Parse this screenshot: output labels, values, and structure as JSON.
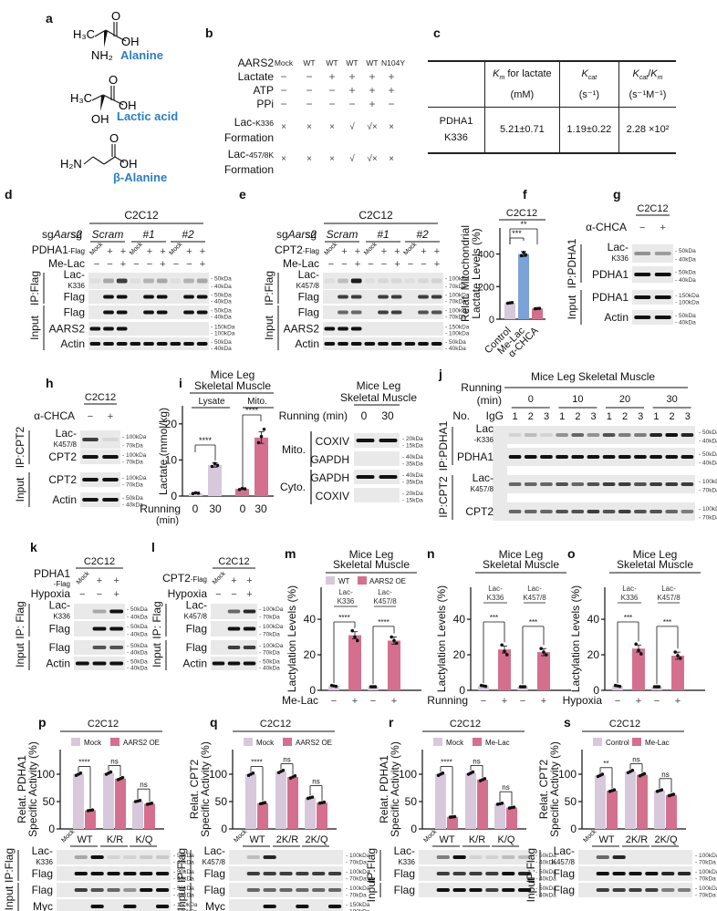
{
  "figure": {
    "panels": [
      "a",
      "b",
      "c",
      "d",
      "e",
      "f",
      "g",
      "h",
      "i",
      "j",
      "k",
      "l",
      "m",
      "n",
      "o",
      "p",
      "q",
      "r",
      "s"
    ]
  },
  "panel_a": {
    "label": "a",
    "molecules": [
      {
        "name": "Alanine",
        "left": "H₃C",
        "substituent": "NH₂",
        "acid": "OH",
        "oxo": "O"
      },
      {
        "name": "Lactic acid",
        "left": "H₃C",
        "substituent": "OH",
        "acid": "OH",
        "oxo": "O"
      },
      {
        "name": "β-Alanine",
        "left": "H₂N",
        "substituent": "",
        "acid": "OH",
        "oxo": "O"
      }
    ]
  },
  "panel_b": {
    "label": "b",
    "columns": [
      "Mock",
      "WT",
      "WT",
      "WT",
      "WT",
      "N104Y"
    ],
    "rows": [
      {
        "label": "AARS2",
        "values": [
          "Mock",
          "WT",
          "WT",
          "WT",
          "WT",
          "N104Y"
        ]
      },
      {
        "label": "Lactate",
        "values": [
          "−",
          "−",
          "+",
          "+",
          "+",
          "+"
        ]
      },
      {
        "label": "ATP",
        "values": [
          "−",
          "−",
          "−",
          "+",
          "+",
          "+"
        ]
      },
      {
        "label": "PPi",
        "values": [
          "−",
          "−",
          "−",
          "−",
          "+",
          "−"
        ]
      },
      {
        "label": "Lac-K336 Formation",
        "label_main": "Lac-",
        "label_sub": "K336",
        "label2": "Formation",
        "values": [
          "×",
          "×",
          "×",
          "√",
          "√×",
          "×"
        ]
      },
      {
        "label": "Lac-457/8K Formation",
        "label_main": "Lac-",
        "label_sub": "457/8K",
        "label2": "Formation",
        "values": [
          "×",
          "×",
          "×",
          "√",
          "√×",
          "×"
        ]
      }
    ]
  },
  "panel_c": {
    "label": "c",
    "headers": [
      {
        "line1": "K_m for lactate",
        "line2": "(mM)"
      },
      {
        "line1": "K_cat",
        "line2": "(s⁻¹)"
      },
      {
        "line1": "K_cat/K_m",
        "line2": "(s⁻¹M⁻¹)"
      }
    ],
    "row_label": [
      "PDHA1",
      "K336"
    ],
    "values": [
      "5.21±0.71",
      "1.19±0.22",
      "2.28 ×10²"
    ]
  },
  "panel_d": {
    "label": "d",
    "cell": "C2C12",
    "sg_label": "sgAars2",
    "groups": [
      "Scram",
      "#1",
      "#2"
    ],
    "row1_label": "PDHA1-Flag",
    "row1": [
      "Mock",
      "+",
      "+",
      "Mock",
      "+",
      "+",
      "Mock",
      "+",
      "+"
    ],
    "row2_label": "Me-Lac",
    "row2": [
      "−",
      "−",
      "+",
      "−",
      "−",
      "+",
      "−",
      "−",
      "+"
    ],
    "sections": [
      {
        "name": "IP:Flag",
        "blots": [
          "Lac-K336",
          "Flag"
        ]
      },
      {
        "name": "Input",
        "blots": [
          "Flag",
          "AARS2",
          "Actin"
        ]
      }
    ],
    "markers": [
      [
        "50kDa",
        "40kDa"
      ],
      [
        "50kDa",
        "40kDa"
      ],
      [
        "50kDa",
        "40kDa"
      ],
      [
        "150kDa",
        "100kDa"
      ],
      [
        "50kDa",
        "40kDa"
      ]
    ]
  },
  "panel_e": {
    "label": "e",
    "cell": "C2C12",
    "sg_label": "sgAars2",
    "groups": [
      "Scram",
      "#1",
      "#2"
    ],
    "row1_label": "CPT2-Flag",
    "row1": [
      "Mock",
      "+",
      "+",
      "Mock",
      "+",
      "+",
      "Mock",
      "+",
      "+"
    ],
    "row2_label": "Me-Lac",
    "row2": [
      "−",
      "−",
      "+",
      "−",
      "−",
      "+",
      "−",
      "−",
      "+"
    ],
    "sections": [
      {
        "name": "IP:Flag",
        "blots": [
          "Lac-K457/8",
          "Flag"
        ]
      },
      {
        "name": "Input",
        "blots": [
          "Flag",
          "AARS2",
          "Actin"
        ]
      }
    ],
    "markers": [
      [
        "100kDa",
        "70kDa"
      ],
      [
        "100kDa",
        "70kDa"
      ],
      [
        "100kDa",
        "70kDa"
      ],
      [
        "150kDa",
        "100kDa"
      ],
      [
        "50kDa",
        "40kDa"
      ]
    ]
  },
  "panel_f": {
    "label": "f",
    "cell": "C2C12",
    "ylabel": "Relat. Mitochondrial Lactate Levels (%)",
    "yticks": [
      "0",
      "200",
      "400"
    ],
    "categories": [
      "Control",
      "Me-Lac",
      "α-CHCA"
    ],
    "sig": [
      "***",
      "**"
    ]
  },
  "panel_g": {
    "label": "g",
    "cell": "C2C12",
    "treatment": "α-CHCA",
    "lanes": [
      "−",
      "+"
    ],
    "sections": [
      {
        "name": "IP:PDHA1",
        "blots": [
          "Lac-K336",
          "PDHA1"
        ]
      },
      {
        "name": "Input",
        "blots": [
          "PDHA1",
          "Actin"
        ]
      }
    ],
    "markers": [
      [
        "50kDa",
        "40kDa"
      ],
      [
        "50kDa",
        "40kDa"
      ],
      [
        "150kDa",
        "100kDa"
      ],
      [
        "50kDa",
        "40kDa"
      ]
    ]
  },
  "panel_h": {
    "label": "h",
    "cell": "C2C12",
    "treatment": "α-CHCA",
    "lanes": [
      "−",
      "+"
    ],
    "sections": [
      {
        "name": "IP:CPT2",
        "blots": [
          "Lac-K457/8",
          "CPT2"
        ]
      },
      {
        "name": "Input",
        "blots": [
          "CPT2",
          "Actin"
        ]
      }
    ],
    "markers": [
      [
        "100kDa",
        "70kDa"
      ],
      [
        "100kDa",
        "70kDa"
      ],
      [
        "100kDa",
        "70kDa"
      ],
      [
        "50kDa",
        "40kDa"
      ]
    ]
  },
  "panel_i": {
    "label": "i",
    "title": "Mice Leg Skeletal Muscle",
    "title1": "Mice Leg",
    "title2": "Skeletal Muscle",
    "groups": [
      "Lysate",
      "Mito."
    ],
    "ylabel": "Lactate (mmol/kg)",
    "yticks": [
      "0",
      "10",
      "20"
    ],
    "xlabel1": "Running",
    "xlabel2": "(min)",
    "xticks": [
      "0",
      "30",
      "0",
      "30"
    ],
    "sig": [
      "****",
      "****"
    ],
    "blot_title1": "Mice Leg",
    "blot_title2": "Skeletal Muscle",
    "blot_running_label": "Running (min)",
    "blot_lanes": [
      "0",
      "30"
    ],
    "blot_sections": [
      {
        "name": "Mito.",
        "blots": [
          "COXIV",
          "GAPDH"
        ]
      },
      {
        "name": "Cyto.",
        "blots": [
          "GAPDH",
          "COXIV"
        ]
      }
    ],
    "blot_markers": [
      [
        "20kDa",
        "15kDa"
      ],
      [
        "40kDa",
        "35kDa"
      ],
      [
        "40kDa",
        "35kDa"
      ],
      [
        "20kDa",
        "15kDa"
      ]
    ]
  },
  "panel_j": {
    "label": "j",
    "title": "Mice Leg Skeletal Muscle",
    "running_label1": "Running",
    "running_label2": "(min)",
    "timepoints": [
      "0",
      "10",
      "20",
      "30"
    ],
    "no_label": "No.",
    "igg_label": "IgG",
    "replicates": [
      "1",
      "2",
      "3"
    ],
    "sections": [
      {
        "name": "IP:PDHA1",
        "blots": [
          "Lac-K336",
          "PDHA1"
        ]
      },
      {
        "name": "IP:CPT2",
        "blots": [
          "Lac-K457/8",
          "CPT2"
        ]
      }
    ],
    "markers": [
      [
        "50kDa",
        "40kDa"
      ],
      [
        "50kDa",
        "40kDa"
      ],
      [
        "100kDa",
        "70kDa"
      ],
      [
        "100kDa",
        "70kDa"
      ]
    ]
  },
  "panel_k": {
    "label": "k",
    "cell": "C2C12",
    "row1_label": "PDHA1-Flag",
    "row1": [
      "Mock",
      "+",
      "+"
    ],
    "row2_label": "Hypoxia",
    "row2": [
      "−",
      "−",
      "+"
    ],
    "sections": [
      {
        "name": "IP: Flag",
        "blots": [
          "Lac-K336",
          "Flag"
        ]
      },
      {
        "name": "Input",
        "blots": [
          "Flag",
          "Actin"
        ]
      }
    ],
    "markers": [
      [
        "50kDa",
        "40kDa"
      ],
      [
        "50kDa",
        "40kDa"
      ],
      [
        "50kDa",
        "40kDa"
      ],
      [
        "50kDa",
        "40kDa"
      ]
    ]
  },
  "panel_l": {
    "label": "l",
    "cell": "C2C12",
    "row1_label": "CPT2-Flag",
    "row1": [
      "Mock",
      "+",
      "+"
    ],
    "row2_label": "Hypoxia",
    "row2": [
      "−",
      "−",
      "+"
    ],
    "sections": [
      {
        "name": "IP: Flag",
        "blots": [
          "Lac-K457/8",
          "Flag"
        ]
      },
      {
        "name": "Input",
        "blots": [
          "Flag",
          "Actin"
        ]
      }
    ],
    "markers": [
      [
        "100kDa",
        "70kDa"
      ],
      [
        "100kDa",
        "70kDa"
      ],
      [
        "100kDa",
        "70kDa"
      ],
      [
        "50kDa",
        "40kDa"
      ]
    ]
  },
  "panel_m": {
    "label": "m",
    "title1": "Mice Leg",
    "title2": "Skeletal Muscle",
    "legend": [
      "WT",
      "AARS2 OE"
    ],
    "sites": [
      "Lac-K336",
      "Lac-K457/8"
    ],
    "ylabel": "Lactylation Levels (%)",
    "yticks": [
      "0",
      "20",
      "40"
    ],
    "xlabel": "Me-Lac",
    "xticks": [
      "−",
      "+",
      "−",
      "+"
    ],
    "sig": [
      "****",
      "****"
    ]
  },
  "panel_n": {
    "label": "n",
    "title1": "Mice Leg",
    "title2": "Skeletal Muscle",
    "sites": [
      "Lac-K336",
      "Lac-K457/8"
    ],
    "ylabel": "Lactylation Levels (%)",
    "yticks": [
      "0",
      "20",
      "40"
    ],
    "xlabel": "Running",
    "xticks": [
      "−",
      "+",
      "−",
      "+"
    ],
    "sig": [
      "***",
      "***"
    ]
  },
  "panel_o": {
    "label": "o",
    "title1": "Mice Leg",
    "title2": "Skeletal Muscle",
    "sites": [
      "Lac-K336",
      "Lac-K457/8"
    ],
    "ylabel": "Lactylation Levels (%)",
    "yticks": [
      "0",
      "20",
      "40"
    ],
    "xlabel": "Hypoxia",
    "xticks": [
      "−",
      "+",
      "−",
      "+"
    ],
    "sig": [
      "***",
      "***"
    ]
  },
  "panel_p": {
    "label": "p",
    "cell": "C2C12",
    "legend": [
      "Mock",
      "AARS2 OE"
    ],
    "ylabel1": "Relat. PDHA1",
    "ylabel2": "Specific Activity (%)",
    "yticks": [
      "0",
      "50",
      "100"
    ],
    "groups": [
      "Mock",
      "WT",
      "K/R",
      "K/Q"
    ],
    "sig": [
      "****",
      "ns",
      "ns"
    ],
    "sections": [
      {
        "name": "IP:Flag",
        "blots": [
          "Lac-K336",
          "Flag"
        ]
      },
      {
        "name": "Input",
        "blots": [
          "Flag",
          "Myc"
        ]
      }
    ],
    "markers": [
      [
        "50kDa",
        "40kDa"
      ],
      [
        "50kDa",
        "40kDa"
      ],
      [
        "50kDa",
        "40kDa"
      ],
      [
        "150kDa",
        "100kDa"
      ]
    ]
  },
  "panel_q": {
    "label": "q",
    "cell": "C2C12",
    "legend": [
      "Mock",
      "AARS2 OE"
    ],
    "ylabel1": "Relat. CPT2",
    "ylabel2": "Specific Activity (%)",
    "yticks": [
      "0",
      "50",
      "100"
    ],
    "groups": [
      "Mock",
      "WT",
      "2K/R",
      "2K/Q"
    ],
    "sig": [
      "****",
      "ns",
      "ns"
    ],
    "sections": [
      {
        "name": "IP:Flag",
        "blots": [
          "Lac-K457/8",
          "Flag"
        ]
      },
      {
        "name": "Input",
        "blots": [
          "Flag",
          "Myc"
        ]
      }
    ],
    "markers": [
      [
        "100kDa",
        "70kDa"
      ],
      [
        "100kDa",
        "70kDa"
      ],
      [
        "100kDa",
        "70kDa"
      ],
      [
        "150kDa",
        "100kDa"
      ]
    ]
  },
  "panel_r": {
    "label": "r",
    "cell": "C2C12",
    "legend": [
      "Mock",
      "Me-Lac"
    ],
    "ylabel1": "Relat. PDHA1",
    "ylabel2": "Specific Activity (%)",
    "yticks": [
      "0",
      "50",
      "100"
    ],
    "groups": [
      "Mock",
      "WT",
      "K/R",
      "K/Q"
    ],
    "sig": [
      "****",
      "ns",
      "ns"
    ],
    "sections": [
      {
        "name": "IP:Flag",
        "blots": [
          "Lac-K336",
          "Flag"
        ]
      },
      {
        "name": "Input",
        "blots": [
          "Flag"
        ]
      }
    ],
    "markers": [
      [
        "50kDa",
        "40kDa"
      ],
      [
        "50kDa",
        "40kDa"
      ],
      [
        "50kDa",
        "40kDa"
      ]
    ]
  },
  "panel_s": {
    "label": "s",
    "cell": "C2C12",
    "legend": [
      "Control",
      "Me-Lac"
    ],
    "ylabel1": "Relat. CPT2",
    "ylabel2": "Specific Activity (%)",
    "yticks": [
      "0",
      "50",
      "100"
    ],
    "groups": [
      "Mock",
      "WT",
      "2K/R",
      "2K/Q"
    ],
    "sig": [
      "**",
      "ns",
      "ns"
    ],
    "sections": [
      {
        "name": "IP:Flag",
        "blots": [
          "Lac-K457/8",
          "Flag"
        ]
      },
      {
        "name": "Input",
        "blots": [
          "Flag"
        ]
      }
    ],
    "markers": [
      [
        "100kDa",
        "70kDa"
      ],
      [
        "100kDa",
        "70kDa"
      ],
      [
        "100kDa",
        "70kDa"
      ]
    ]
  },
  "colors": {
    "control_bar": "#d8c8dc",
    "treated_bar": "#d4708e",
    "mitolac_bar": "#7ba3d8",
    "label_blue": "#2a7fc1",
    "blot_bg": "#e9e9e9",
    "band": "#1a1a1a"
  },
  "chart_data": [
    {
      "panel": "f",
      "type": "bar",
      "title": "C2C12",
      "categories": [
        "Control",
        "Me-Lac",
        "α-CHCA"
      ],
      "values": [
        100,
        400,
        65
      ],
      "xlabel": "",
      "ylabel": "Relat. Mitochondrial Lactate Levels (%)",
      "ylim": [
        0,
        560
      ],
      "annotations": [
        "*** Control vs Me-Lac",
        "** Control vs α-CHCA"
      ]
    },
    {
      "panel": "i",
      "type": "bar",
      "title": "Mice Leg Skeletal Muscle",
      "categories": [
        "Lysate 0",
        "Lysate 30",
        "Mito. 0",
        "Mito. 30"
      ],
      "values": [
        0.8,
        8.6,
        2.0,
        16.2
      ],
      "xlabel": "Running (min)",
      "ylabel": "Lactate (mmol/kg)",
      "ylim": [
        0,
        25
      ],
      "annotations": [
        "****",
        "****"
      ]
    },
    {
      "panel": "m",
      "type": "bar",
      "title": "Mice Leg Skeletal Muscle",
      "categories": [
        "Lac-K336",
        "Lac-K457/8"
      ],
      "series": [
        {
          "name": "WT",
          "values": [
            2.5,
            2
          ]
        },
        {
          "name": "AARS2 OE",
          "values": [
            31,
            28
          ]
        }
      ],
      "xlabel": "Me-Lac",
      "ylabel": "Lactylation Levels (%)",
      "ylim": [
        0,
        58
      ]
    },
    {
      "panel": "n",
      "type": "bar",
      "title": "Mice Leg Skeletal Muscle",
      "categories": [
        "Lac-K336",
        "Lac-K457/8"
      ],
      "series": [
        {
          "name": "Running −",
          "values": [
            2.5,
            2
          ]
        },
        {
          "name": "Running +",
          "values": [
            23,
            21.5
          ]
        }
      ],
      "xlabel": "Running",
      "ylabel": "Lactylation Levels (%)",
      "ylim": [
        0,
        58
      ]
    },
    {
      "panel": "o",
      "type": "bar",
      "title": "Mice Leg Skeletal Muscle",
      "categories": [
        "Lac-K336",
        "Lac-K457/8"
      ],
      "series": [
        {
          "name": "Hypoxia −",
          "values": [
            2.5,
            2
          ]
        },
        {
          "name": "Hypoxia +",
          "values": [
            23.5,
            19.5
          ]
        }
      ],
      "xlabel": "Hypoxia",
      "ylabel": "Lactylation Levels (%)",
      "ylim": [
        0,
        58
      ]
    },
    {
      "panel": "p",
      "type": "bar",
      "title": "C2C12",
      "categories": [
        "WT",
        "K/R",
        "K/Q"
      ],
      "series": [
        {
          "name": "Mock",
          "values": [
            100,
            102,
            51
          ]
        },
        {
          "name": "AARS2 OE",
          "values": [
            34,
            92,
            46
          ]
        }
      ],
      "ylabel": "Relat. PDHA1 Specific Activity (%)",
      "ylim": [
        0,
        145
      ]
    },
    {
      "panel": "q",
      "type": "bar",
      "title": "C2C12",
      "categories": [
        "WT",
        "2K/R",
        "2K/Q"
      ],
      "series": [
        {
          "name": "Mock",
          "values": [
            100,
            105,
            57
          ]
        },
        {
          "name": "AARS2 OE",
          "values": [
            47,
            95,
            48
          ]
        }
      ],
      "ylabel": "Relat. CPT2 Specific Activity (%)",
      "ylim": [
        0,
        145
      ]
    },
    {
      "panel": "r",
      "type": "bar",
      "title": "C2C12",
      "categories": [
        "WT",
        "K/R",
        "K/Q"
      ],
      "series": [
        {
          "name": "Mock",
          "values": [
            100,
            102,
            46
          ]
        },
        {
          "name": "Me-Lac",
          "values": [
            22,
            90,
            39
          ]
        }
      ],
      "ylabel": "Relat. PDHA1 Specific Activity (%)",
      "ylim": [
        0,
        145
      ]
    },
    {
      "panel": "s",
      "type": "bar",
      "title": "C2C12",
      "categories": [
        "WT",
        "2K/R",
        "2K/Q"
      ],
      "series": [
        {
          "name": "Control",
          "values": [
            98,
            105,
            70
          ]
        },
        {
          "name": "Me-Lac",
          "values": [
            70,
            99,
            62
          ]
        }
      ],
      "ylabel": "Relat. CPT2 Specific Activity (%)",
      "ylim": [
        0,
        145
      ]
    }
  ]
}
